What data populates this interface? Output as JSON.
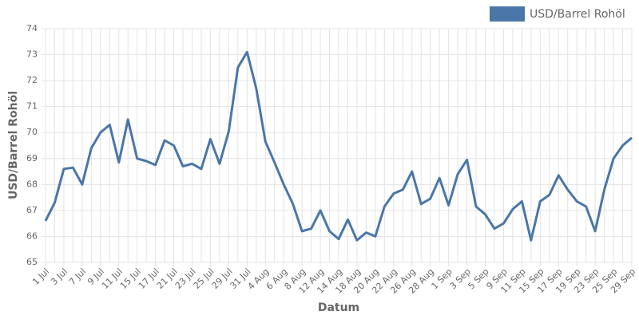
{
  "chart_data": {
    "type": "line",
    "x_label": "Datum",
    "y_label": "USD/Barrel Rohöl",
    "categories": [
      "1 Jul",
      null,
      "3 Jul",
      null,
      "7 Jul",
      null,
      "9 Jul",
      null,
      "11 Jul",
      null,
      "15 Jul",
      null,
      "17 Jul",
      null,
      "21 Jul",
      null,
      "23 Jul",
      null,
      "25 Jul",
      null,
      "29 Jul",
      null,
      "31 Jul",
      null,
      "4 Aug",
      null,
      "6 Aug",
      null,
      "8 Aug",
      null,
      "12 Aug",
      null,
      "14 Aug",
      null,
      "18 Aug",
      null,
      "20 Aug",
      null,
      "22 Aug",
      null,
      "26 Aug",
      null,
      "28 Aug",
      null,
      "1 Sep",
      null,
      "3 Sep",
      null,
      "5 Sep",
      null,
      "9 Sep",
      null,
      "11 Sep",
      null,
      "15 Sep",
      null,
      "17 Sep",
      null,
      "19 Sep",
      null,
      "23 Sep",
      null,
      "25 Sep",
      null,
      "29 Sep"
    ],
    "series": [
      {
        "name": "USD/Barrel Rohöl",
        "color": "#4a76a8",
        "values": [
          66.6,
          67.3,
          68.6,
          68.65,
          68.0,
          69.4,
          70.0,
          70.3,
          68.85,
          70.5,
          69.0,
          68.9,
          68.75,
          69.7,
          69.5,
          68.7,
          68.8,
          68.6,
          69.75,
          68.8,
          70.05,
          72.5,
          73.1,
          71.7,
          69.65,
          68.85,
          68.0,
          67.25,
          66.2,
          66.3,
          67.0,
          66.2,
          65.9,
          66.65,
          65.85,
          66.15,
          66.0,
          67.15,
          67.65,
          67.8,
          68.5,
          67.25,
          67.45,
          68.25,
          67.2,
          68.4,
          68.95,
          67.15,
          66.85,
          66.3,
          66.5,
          67.05,
          67.35,
          65.85,
          67.35,
          67.6,
          68.35,
          67.8,
          67.35,
          67.15,
          66.2,
          67.8,
          69.0,
          69.5,
          69.8
        ]
      }
    ],
    "ylim": [
      65,
      74
    ],
    "yticks": [
      65,
      66,
      67,
      68,
      69,
      70,
      71,
      72,
      73,
      74
    ],
    "grid": true,
    "legend": "top-right"
  }
}
